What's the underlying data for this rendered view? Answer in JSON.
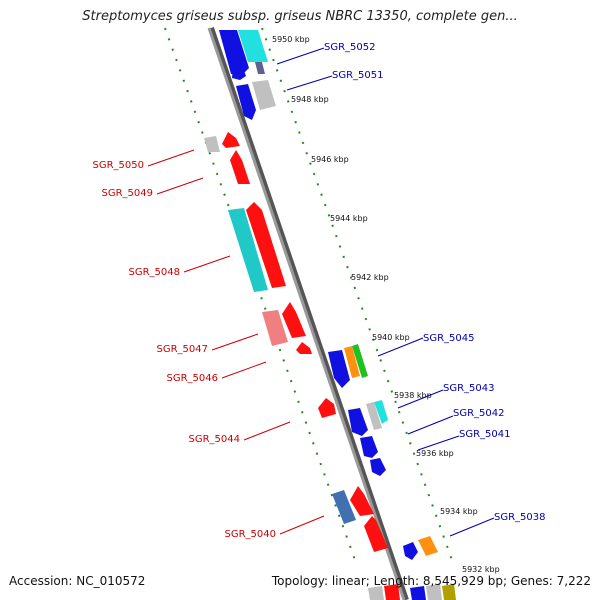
{
  "title": "Streptomyces griseus subsp. griseus NBRC 13350, complete gen...",
  "accession": "Accession: NC_010572",
  "topology": "Topology: linear; Length: 8,545,929 bp; Genes: 7,222",
  "colors": {
    "forward_label": "#0000aa",
    "reverse_label": "#cc0000",
    "backbone": "#888888",
    "track_dots": "#228b22"
  },
  "ticks": [
    "5950 kbp",
    "5948 kbp",
    "5946 kbp",
    "5944 kbp",
    "5942 kbp",
    "5940 kbp",
    "5938 kbp",
    "5936 kbp",
    "5934 kbp",
    "5932 kbp"
  ],
  "forward_genes": [
    "SGR_5052",
    "SGR_5051",
    "SGR_5045",
    "SGR_5043",
    "SGR_5042",
    "SGR_5041",
    "SGR_5038"
  ],
  "reverse_genes": [
    "SGR_5050",
    "SGR_5049",
    "SGR_5048",
    "SGR_5047",
    "SGR_5046",
    "SGR_5044",
    "SGR_5040"
  ]
}
